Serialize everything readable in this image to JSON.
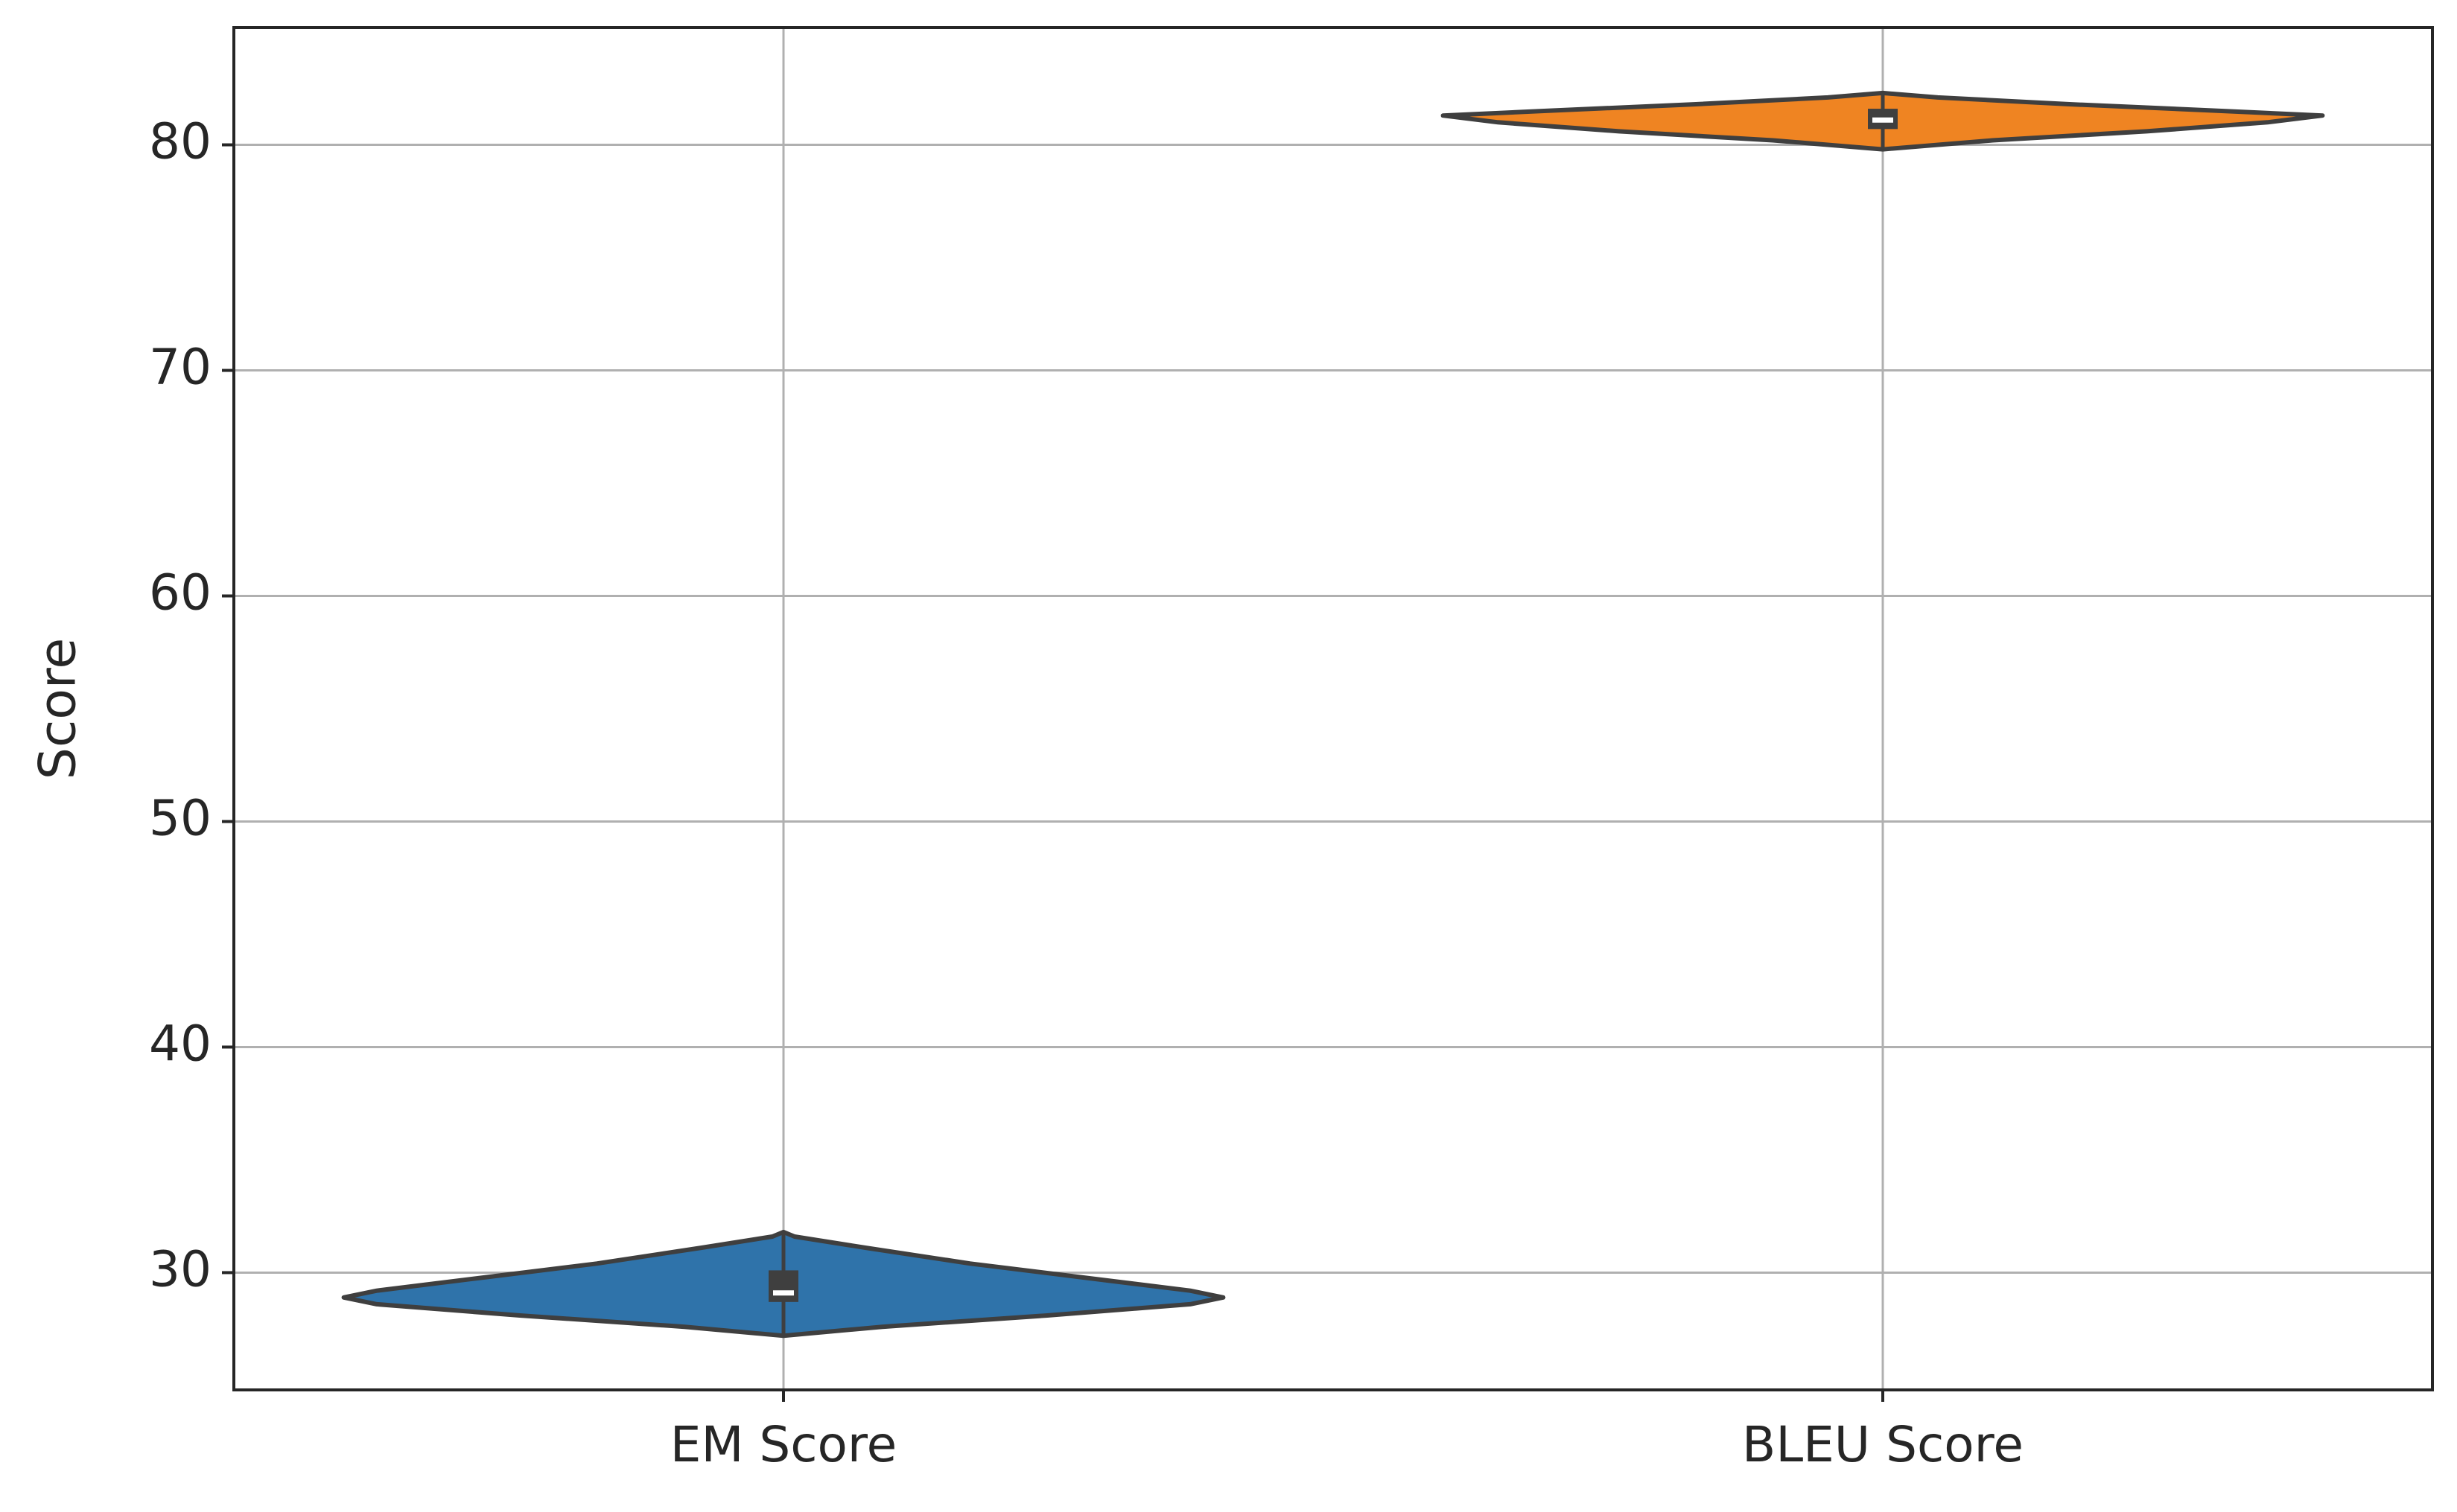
{
  "chart_data": {
    "type": "violin",
    "title": "",
    "xlabel": "",
    "ylabel": "Score",
    "categories": [
      "EM Score",
      "BLEU Score"
    ],
    "ylim": [
      24.8,
      85.2
    ],
    "yticks": [
      30,
      40,
      50,
      60,
      70,
      80
    ],
    "grid": true,
    "legend": "none",
    "series": [
      {
        "category": "EM Score",
        "color": "#2f73aa",
        "median": 29.1,
        "q1": 28.7,
        "q3": 30.1,
        "min": 27.2,
        "max": 31.8,
        "profile": [
          {
            "y": 27.2,
            "width": 0.0
          },
          {
            "y": 27.6,
            "width": 0.18
          },
          {
            "y": 28.1,
            "width": 0.48
          },
          {
            "y": 28.6,
            "width": 0.74
          },
          {
            "y": 28.9,
            "width": 0.8
          },
          {
            "y": 29.2,
            "width": 0.74
          },
          {
            "y": 29.8,
            "width": 0.54
          },
          {
            "y": 30.4,
            "width": 0.34
          },
          {
            "y": 31.1,
            "width": 0.15
          },
          {
            "y": 31.6,
            "width": 0.02
          },
          {
            "y": 31.8,
            "width": 0.0
          }
        ]
      },
      {
        "category": "BLEU Score",
        "color": "#ef8422",
        "median": 81.1,
        "q1": 80.7,
        "q3": 81.6,
        "min": 79.8,
        "max": 82.3,
        "profile": [
          {
            "y": 79.8,
            "width": 0.0
          },
          {
            "y": 80.2,
            "width": 0.2
          },
          {
            "y": 80.6,
            "width": 0.48
          },
          {
            "y": 81.0,
            "width": 0.7
          },
          {
            "y": 81.3,
            "width": 0.8
          },
          {
            "y": 81.5,
            "width": 0.62
          },
          {
            "y": 81.8,
            "width": 0.34
          },
          {
            "y": 82.1,
            "width": 0.1
          },
          {
            "y": 82.3,
            "width": 0.0
          }
        ]
      }
    ]
  }
}
